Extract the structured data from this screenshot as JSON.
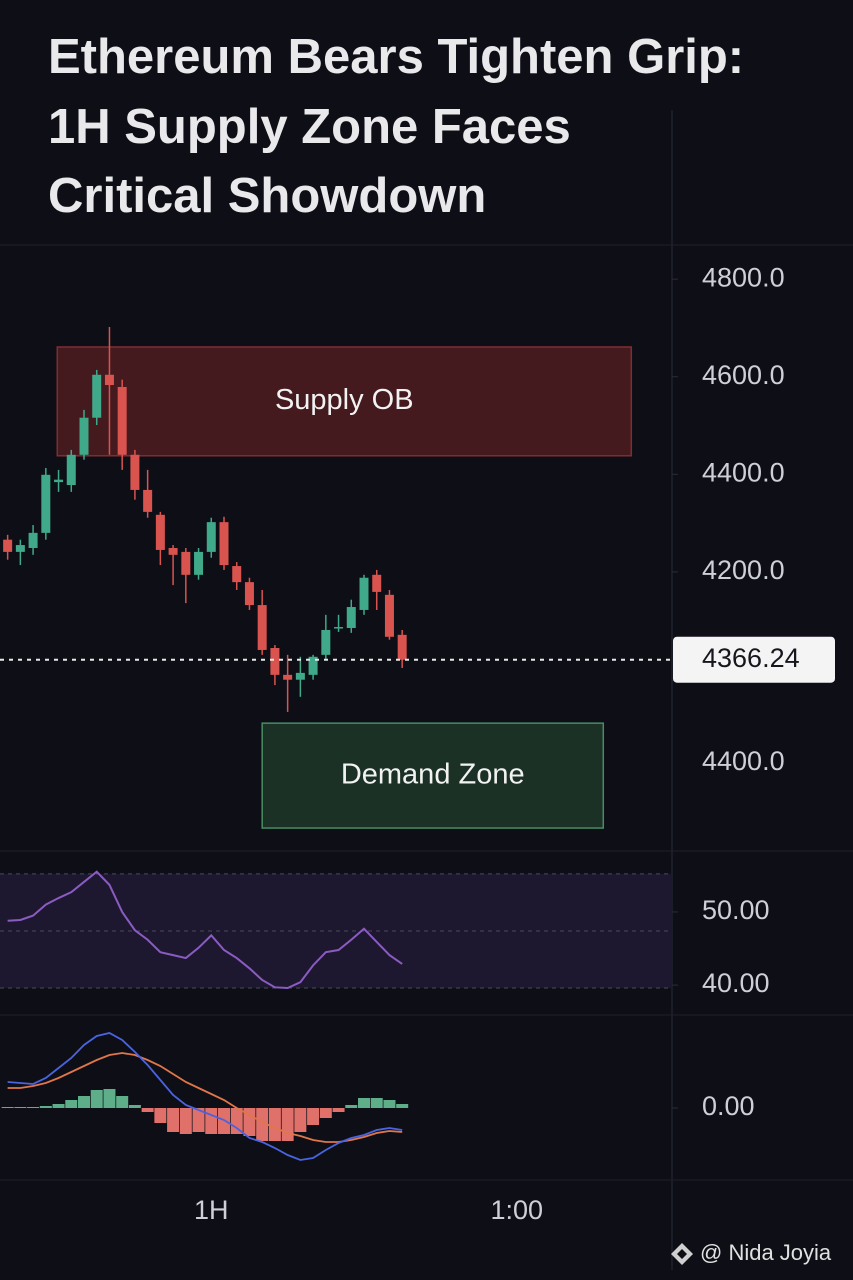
{
  "title": [
    "Ethereum Bears Tighten Grip:",
    "1H Supply Zone Faces",
    "Critical Showdown"
  ],
  "watermark": "@ Nida Joyia",
  "chart_data": [
    {
      "type": "candlestick",
      "open": [
        4266,
        4241,
        4249,
        4280,
        4384,
        4378,
        4440,
        4516,
        4604,
        4579,
        4440,
        4368,
        4317,
        4249,
        4241,
        4194,
        4241,
        4302,
        4212,
        4179,
        4132,
        4044,
        3989,
        3979,
        3989,
        4030,
        4085,
        4085,
        4122,
        4194,
        4153,
        4071
      ],
      "high": [
        4276,
        4266,
        4296,
        4413,
        4409,
        4450,
        4532,
        4614,
        4702,
        4594,
        4450,
        4409,
        4323,
        4255,
        4249,
        4249,
        4311,
        4313,
        4220,
        4188,
        4163,
        4050,
        4030,
        4026,
        4030,
        4112,
        4112,
        4143,
        4194,
        4204,
        4163,
        4081
      ],
      "low": [
        4225,
        4214,
        4235,
        4266,
        4364,
        4364,
        4430,
        4501,
        4440,
        4409,
        4348,
        4311,
        4214,
        4173,
        4136,
        4184,
        4229,
        4204,
        4163,
        4122,
        4030,
        3968,
        3913,
        3944,
        3979,
        4020,
        4077,
        4075,
        4112,
        4122,
        4061,
        4003
      ],
      "close": [
        4241,
        4255,
        4280,
        4399,
        4389,
        4440,
        4516,
        4604,
        4583,
        4440,
        4368,
        4323,
        4245,
        4235,
        4194,
        4241,
        4302,
        4214,
        4179,
        4132,
        4040,
        3989,
        3979,
        3993,
        4026,
        4081,
        4087,
        4128,
        4188,
        4159,
        4067,
        4020
      ],
      "up_color": "#3fa98a",
      "down_color": "#d9534f",
      "xlim": [
        -0.6,
        52.2
      ],
      "ylim": [
        3630,
        4870
      ],
      "yticks": [
        {
          "value": 4800,
          "label": "4800.0"
        },
        {
          "value": 4600,
          "label": "4600.0"
        },
        {
          "value": 4400,
          "label": "4400.0"
        },
        {
          "value": 4200,
          "label": "4200.0"
        }
      ],
      "zones": [
        {
          "label": "Supply OB",
          "top": 4661,
          "bottom": 4438,
          "x_start": 3.9,
          "x_end": 49.0,
          "color": "#4a1c20",
          "border": "#8a3236"
        },
        {
          "label": "Demand Zone",
          "top": 3890,
          "bottom": 3675,
          "x_start": 20.0,
          "x_end": 46.8,
          "color": "#1d3527",
          "border": "#4e9a6c"
        }
      ],
      "price_tag": "4366.24",
      "axis_note": "4400.0"
    },
    {
      "type": "line",
      "values": [
        48.8,
        48.9,
        49.5,
        51.0,
        51.9,
        52.7,
        54.1,
        55.5,
        53.7,
        50.0,
        47.5,
        46.2,
        44.5,
        44.1,
        43.7,
        45.1,
        46.8,
        44.8,
        43.7,
        42.3,
        40.7,
        39.7,
        39.6,
        40.4,
        42.7,
        44.5,
        44.8,
        46.2,
        47.7,
        45.9,
        44.1,
        42.9
      ],
      "color": "#8a5cc2",
      "band": [
        39.6,
        55.2
      ],
      "band_color": "#1e1730",
      "xlim": [
        -0.6,
        52.2
      ],
      "ylim": [
        36.6,
        57.1
      ],
      "yticks": [
        {
          "value": 50,
          "label": "50.00"
        },
        {
          "value": 40,
          "label": "40.00"
        }
      ]
    },
    {
      "type": "macd",
      "histogram": [
        0.1,
        0.1,
        0.1,
        0.2,
        0.4,
        0.8,
        1.2,
        1.8,
        1.9,
        1.2,
        0.3,
        -0.4,
        -1.5,
        -2.4,
        -2.6,
        -2.4,
        -2.6,
        -2.6,
        -2.6,
        -2.8,
        -3.3,
        -3.3,
        -3.3,
        -2.4,
        -1.7,
        -1.0,
        -0.4,
        0.3,
        1.0,
        1.0,
        0.8,
        0.4
      ],
      "macd": [
        2.6,
        2.5,
        2.4,
        3.0,
        4.0,
        5.0,
        6.3,
        7.2,
        7.5,
        6.8,
        5.6,
        4.3,
        2.8,
        1.3,
        0.3,
        -0.2,
        -0.7,
        -1.2,
        -2.0,
        -3.0,
        -3.4,
        -4.0,
        -4.7,
        -5.2,
        -5.0,
        -4.2,
        -3.5,
        -3.0,
        -2.7,
        -2.2,
        -2.0,
        -2.2
      ],
      "signal": [
        2.0,
        2.0,
        2.2,
        2.5,
        3.0,
        3.6,
        4.2,
        4.8,
        5.3,
        5.5,
        5.3,
        4.8,
        4.2,
        3.4,
        2.6,
        2.0,
        1.4,
        0.8,
        0.0,
        -0.7,
        -1.4,
        -2.0,
        -2.5,
        -2.8,
        -3.2,
        -3.4,
        -3.4,
        -3.2,
        -2.9,
        -2.5,
        -2.3,
        -2.4
      ],
      "macd_color": "#4a63e0",
      "signal_color": "#e0764a",
      "up_color": "#5fae8a",
      "down_color": "#e0706a",
      "xlim": [
        -0.6,
        52.2
      ],
      "ylim": [
        -7.2,
        8.8
      ],
      "yticks": [
        {
          "value": 0,
          "label": "0.00"
        }
      ],
      "xticks": [
        {
          "value": 16,
          "label": "1H"
        },
        {
          "value": 40,
          "label": "1:00"
        }
      ]
    }
  ]
}
